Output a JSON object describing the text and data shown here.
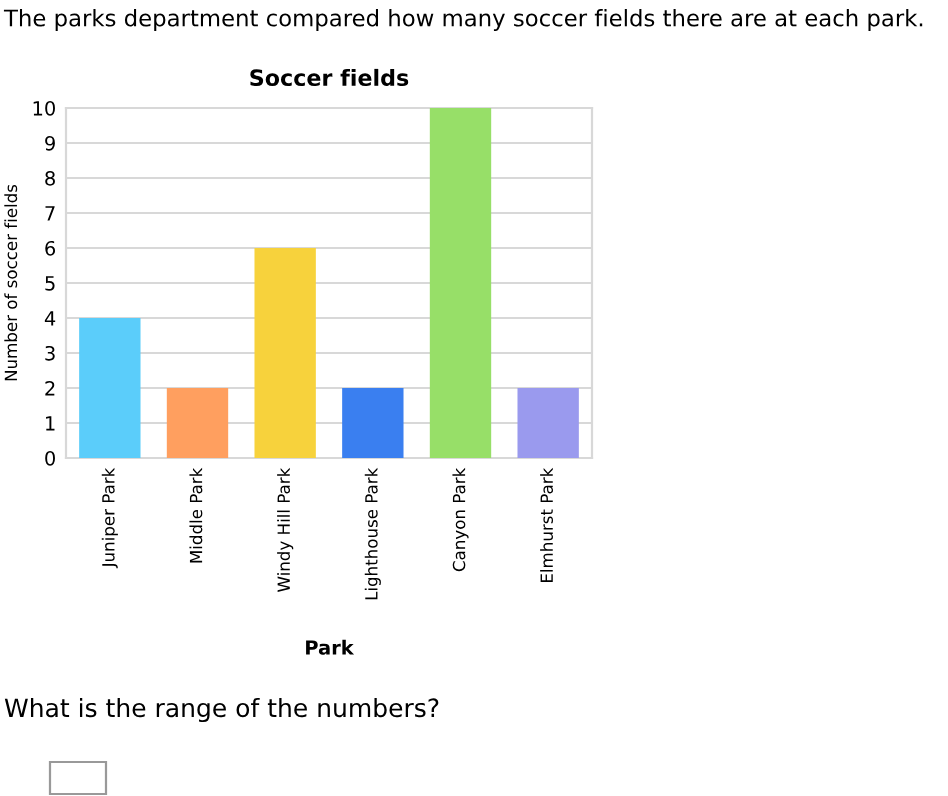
{
  "chart_data": {
    "type": "bar",
    "title": "Soccer fields",
    "xlabel": "Park",
    "ylabel": "Number of soccer fields",
    "categories": [
      "Juniper Park",
      "Middle Park",
      "Windy Hill Park",
      "Lighthouse Park",
      "Canyon Park",
      "Elmhurst Park"
    ],
    "values": [
      4,
      2,
      6,
      2,
      10,
      2
    ],
    "colors": [
      "#5bcdfa",
      "#ff9f5f",
      "#f7d23c",
      "#3a7ff0",
      "#97df68",
      "#9a9aee"
    ],
    "ylim": [
      0,
      10
    ],
    "yticks": [
      0,
      1,
      2,
      3,
      4,
      5,
      6,
      7,
      8,
      9,
      10
    ],
    "grid": "y",
    "annotations": [
      "The parks department compared how many soccer fields there are at each park.",
      "What is the range of the numbers?"
    ]
  }
}
